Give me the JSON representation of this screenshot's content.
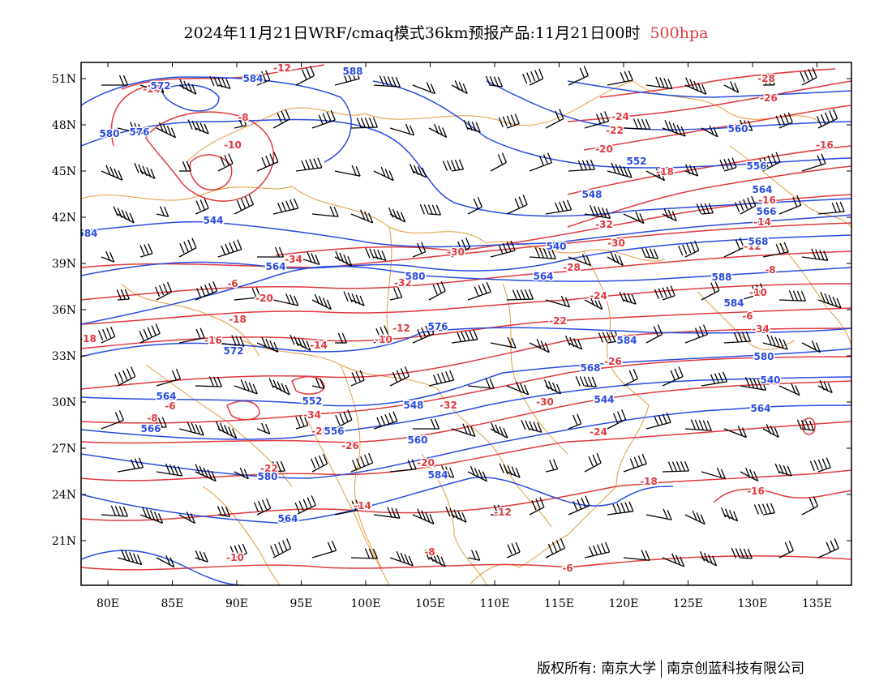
{
  "header": {
    "title": "2024年11月21日WRF/cmaq模式36km预报产品:11月21日00时",
    "level": "500hpa"
  },
  "axes": {
    "lon_ticks": [
      "80E",
      "85E",
      "90E",
      "95E",
      "100E",
      "105E",
      "110E",
      "115E",
      "120E",
      "125E",
      "130E",
      "135E"
    ],
    "lat_ticks": [
      "51N",
      "48N",
      "45N",
      "42N",
      "39N",
      "36N",
      "33N",
      "30N",
      "27N",
      "24N",
      "21N"
    ]
  },
  "colors": {
    "height_contour": "#2a4be0",
    "temperature_contour": "#e0393e",
    "boundary": "#e39a3c",
    "wind_barb": "#000000"
  },
  "contours": {
    "height_labels": [
      "584",
      "564",
      "580",
      "564",
      "540",
      "544",
      "548",
      "552",
      "556",
      "560",
      "564",
      "566",
      "568",
      "572",
      "576",
      "580",
      "584",
      "588"
    ],
    "temperature_labels": [
      "-6",
      "-8",
      "-10",
      "-12",
      "-14",
      "-16",
      "-18",
      "-20",
      "-22",
      "-24",
      "-26",
      "-28",
      "-30",
      "-32",
      "-34"
    ]
  },
  "footer": {
    "copyright": "版权所有: 南京大学",
    "company": "南京创蓝科技有限公司"
  }
}
